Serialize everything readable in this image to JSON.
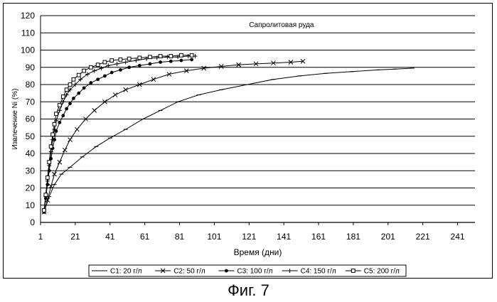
{
  "figure_caption": "Фиг. 7",
  "chart_data": {
    "type": "line",
    "title": "",
    "annotation": "Сапролитовая руда",
    "xlabel": "Время (дни)",
    "ylabel": "Извлечение Ni (%)",
    "xlim": [
      1,
      251
    ],
    "ylim": [
      0,
      120
    ],
    "x_ticks": [
      1,
      21,
      41,
      61,
      81,
      101,
      121,
      141,
      161,
      181,
      201,
      221,
      241
    ],
    "y_ticks": [
      0,
      10,
      20,
      30,
      40,
      50,
      60,
      70,
      80,
      90,
      100,
      110,
      120
    ],
    "grid": "horizontal",
    "legend_position": "bottom",
    "series": [
      {
        "name": "C1: 20 г/л",
        "marker": "dash",
        "x": [
          3,
          6,
          9,
          13,
          18,
          25,
          33,
          41,
          50,
          60,
          70,
          80,
          92,
          105,
          120,
          135,
          150,
          165,
          180,
          195,
          205,
          215
        ],
        "y": [
          6,
          15,
          22,
          28,
          32,
          38,
          44,
          49,
          54,
          60,
          65,
          70,
          74,
          77,
          80,
          83,
          85,
          86.5,
          87.5,
          88.5,
          89,
          89.5
        ]
      },
      {
        "name": "C2: 50 г/л",
        "marker": "x",
        "x": [
          3,
          5,
          7,
          9,
          12,
          15,
          18,
          22,
          27,
          32,
          38,
          44,
          50,
          58,
          66,
          75,
          85,
          95,
          105,
          115,
          125,
          135,
          145,
          152
        ],
        "y": [
          6,
          13,
          21,
          28,
          35,
          42,
          48,
          54,
          60,
          65,
          70,
          74,
          77,
          80,
          83,
          86,
          88,
          89.5,
          90.5,
          91.5,
          92,
          92.5,
          93,
          93.5
        ]
      },
      {
        "name": "C3: 100 г/л",
        "marker": "filled-circle",
        "x": [
          3,
          4,
          5,
          6,
          7,
          8,
          9,
          10,
          12,
          14,
          16,
          18,
          20,
          23,
          26,
          30,
          34,
          38,
          42,
          47,
          52,
          58,
          64,
          70,
          76,
          82,
          88
        ],
        "y": [
          6,
          14,
          22,
          30,
          37,
          43,
          48,
          53,
          58,
          62,
          66,
          69,
          72,
          75,
          78,
          81,
          83,
          85,
          87,
          88.5,
          90,
          91,
          92,
          93,
          93.5,
          94,
          94.5
        ]
      },
      {
        "name": "C4: 150 г/л",
        "marker": "plus",
        "x": [
          3,
          4,
          5,
          6,
          7,
          8,
          9,
          10,
          12,
          14,
          16,
          18,
          21,
          24,
          28,
          32,
          36,
          40,
          45,
          50,
          56,
          62,
          68,
          74,
          80,
          86,
          90
        ],
        "y": [
          7,
          15,
          24,
          33,
          41,
          48,
          54,
          59,
          65,
          70,
          74,
          77,
          80,
          83,
          86,
          88,
          89.5,
          91,
          92,
          93,
          94,
          95,
          95.5,
          96,
          96,
          96.5,
          96.5
        ]
      },
      {
        "name": "C5: 200 г/л",
        "marker": "open-square",
        "x": [
          3,
          4,
          5,
          6,
          7,
          8,
          9,
          10,
          12,
          14,
          16,
          18,
          20,
          23,
          26,
          30,
          34,
          38,
          42,
          47,
          52,
          58,
          64,
          70,
          76,
          82,
          88
        ],
        "y": [
          7,
          16,
          26,
          35,
          44,
          51,
          57,
          63,
          68,
          73,
          77,
          80,
          83,
          85.5,
          88,
          90,
          91.5,
          93,
          94,
          94.5,
          95,
          95.5,
          96,
          96.5,
          96.5,
          97,
          97
        ]
      }
    ]
  }
}
